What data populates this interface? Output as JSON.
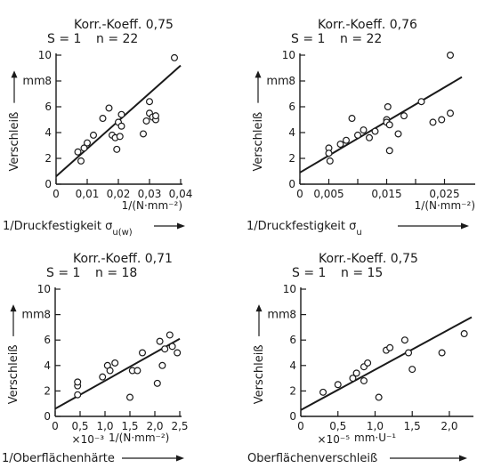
{
  "chart_data": [
    {
      "type": "scatter",
      "title": "Korr.-Koeff. 0,75",
      "subtitle_s": "S = 1",
      "subtitle_n": "n = 22",
      "ylabel": "Verschleiß",
      "yunit": "mm",
      "xunit": "1/(N·mm⁻²)",
      "xlabel": "1/Druckfestigkeit σ",
      "xlabel_sub": "u(w)",
      "xmult": "",
      "xlim": [
        0,
        0.04
      ],
      "ylim": [
        0,
        10
      ],
      "xticks": [
        0,
        0.01,
        0.02,
        0.03,
        0.04
      ],
      "xtick_labels": [
        "0",
        "0,01",
        "0,02",
        "0,03",
        "0,04"
      ],
      "yticks": [
        0,
        2,
        4,
        6,
        8,
        10
      ],
      "ytick_labels": [
        "0",
        "2",
        "4",
        "6",
        "8",
        "10"
      ],
      "grid": false,
      "points": [
        {
          "x": 0.007,
          "y": 2.5
        },
        {
          "x": 0.008,
          "y": 1.8
        },
        {
          "x": 0.009,
          "y": 2.8
        },
        {
          "x": 0.01,
          "y": 3.2
        },
        {
          "x": 0.012,
          "y": 3.8
        },
        {
          "x": 0.015,
          "y": 5.1
        },
        {
          "x": 0.017,
          "y": 5.9
        },
        {
          "x": 0.018,
          "y": 3.8
        },
        {
          "x": 0.019,
          "y": 3.6
        },
        {
          "x": 0.0195,
          "y": 2.7
        },
        {
          "x": 0.02,
          "y": 4.8
        },
        {
          "x": 0.0205,
          "y": 3.7
        },
        {
          "x": 0.021,
          "y": 5.4
        },
        {
          "x": 0.021,
          "y": 4.5
        },
        {
          "x": 0.028,
          "y": 3.9
        },
        {
          "x": 0.029,
          "y": 4.9
        },
        {
          "x": 0.03,
          "y": 6.4
        },
        {
          "x": 0.03,
          "y": 5.5
        },
        {
          "x": 0.031,
          "y": 5.2
        },
        {
          "x": 0.032,
          "y": 5.0
        },
        {
          "x": 0.032,
          "y": 5.3
        },
        {
          "x": 0.038,
          "y": 9.8
        }
      ],
      "fit_line": [
        {
          "x": 0,
          "y": 0.6
        },
        {
          "x": 0.04,
          "y": 9.2
        }
      ]
    },
    {
      "type": "scatter",
      "title": "Korr.-Koeff. 0,76",
      "subtitle_s": "S = 1",
      "subtitle_n": "n = 22",
      "ylabel": "Verschleiß",
      "yunit": "mm",
      "xunit": "1/(N·mm⁻²)",
      "xlabel": "1/Druckfestigkeit σ",
      "xlabel_sub": "u",
      "xmult": "",
      "xlim": [
        0,
        0.03
      ],
      "ylim": [
        0,
        10
      ],
      "xticks": [
        0,
        0.005,
        0.01,
        0.015,
        0.02,
        0.025
      ],
      "xtick_labels": [
        "0",
        "0,005",
        "",
        "0,015",
        "",
        "0,025"
      ],
      "yticks": [
        0,
        2,
        4,
        6,
        8,
        10
      ],
      "ytick_labels": [
        "0",
        "2",
        "4",
        "6",
        "8",
        "10"
      ],
      "grid": false,
      "points": [
        {
          "x": 0.005,
          "y": 2.8
        },
        {
          "x": 0.005,
          "y": 2.4
        },
        {
          "x": 0.0052,
          "y": 1.8
        },
        {
          "x": 0.007,
          "y": 3.1
        },
        {
          "x": 0.008,
          "y": 3.4
        },
        {
          "x": 0.009,
          "y": 5.1
        },
        {
          "x": 0.01,
          "y": 3.8
        },
        {
          "x": 0.011,
          "y": 4.2
        },
        {
          "x": 0.012,
          "y": 3.6
        },
        {
          "x": 0.013,
          "y": 4.1
        },
        {
          "x": 0.015,
          "y": 5.0
        },
        {
          "x": 0.015,
          "y": 4.8
        },
        {
          "x": 0.0152,
          "y": 6.0
        },
        {
          "x": 0.0155,
          "y": 2.6
        },
        {
          "x": 0.0155,
          "y": 4.6
        },
        {
          "x": 0.017,
          "y": 3.9
        },
        {
          "x": 0.018,
          "y": 5.3
        },
        {
          "x": 0.021,
          "y": 6.4
        },
        {
          "x": 0.023,
          "y": 4.8
        },
        {
          "x": 0.0245,
          "y": 5.0
        },
        {
          "x": 0.026,
          "y": 5.5
        },
        {
          "x": 0.026,
          "y": 10.0
        }
      ],
      "fit_line": [
        {
          "x": 0,
          "y": 0.9
        },
        {
          "x": 0.028,
          "y": 8.3
        }
      ]
    },
    {
      "type": "scatter",
      "title": "Korr.-Koeff. 0,71",
      "subtitle_s": "S = 1",
      "subtitle_n": "n = 18",
      "ylabel": "Verschleiß",
      "yunit": "mm",
      "xunit": "1/(N·mm⁻²)",
      "xlabel": "1/Oberflächenhärte",
      "xlabel_sub": "",
      "xmult": "×10⁻³",
      "xlim": [
        0,
        2.5
      ],
      "ylim": [
        0,
        10
      ],
      "xticks": [
        0,
        0.5,
        1.0,
        1.5,
        2.0,
        2.5
      ],
      "xtick_labels": [
        "0",
        "0,5",
        "1,0",
        "1,5",
        "2,0",
        "2,5"
      ],
      "yticks": [
        0,
        2,
        4,
        6,
        8,
        10
      ],
      "ytick_labels": [
        "0",
        "2",
        "4",
        "6",
        "8",
        "10"
      ],
      "grid": false,
      "points": [
        {
          "x": 0.45,
          "y": 1.7
        },
        {
          "x": 0.45,
          "y": 2.4
        },
        {
          "x": 0.45,
          "y": 2.7
        },
        {
          "x": 0.95,
          "y": 3.1
        },
        {
          "x": 1.05,
          "y": 4.0
        },
        {
          "x": 1.1,
          "y": 3.6
        },
        {
          "x": 1.2,
          "y": 4.2
        },
        {
          "x": 1.5,
          "y": 1.5
        },
        {
          "x": 1.55,
          "y": 3.6
        },
        {
          "x": 1.65,
          "y": 3.6
        },
        {
          "x": 1.75,
          "y": 5.0
        },
        {
          "x": 2.05,
          "y": 2.6
        },
        {
          "x": 2.1,
          "y": 5.9
        },
        {
          "x": 2.15,
          "y": 4.0
        },
        {
          "x": 2.2,
          "y": 5.3
        },
        {
          "x": 2.3,
          "y": 6.4
        },
        {
          "x": 2.35,
          "y": 5.5
        },
        {
          "x": 2.45,
          "y": 5.0
        }
      ],
      "fit_line": [
        {
          "x": 0,
          "y": 0.6
        },
        {
          "x": 2.5,
          "y": 6.1
        }
      ]
    },
    {
      "type": "scatter",
      "title": "Korr.-Koeff. 0,75",
      "subtitle_s": "S = 1",
      "subtitle_n": "n = 15",
      "ylabel": "Verschleiß",
      "yunit": "mm",
      "xunit": "mm·U⁻¹",
      "xlabel": "Oberflächenverschleiß",
      "xlabel_sub": "",
      "xmult": "×10⁻⁵",
      "xlim": [
        0,
        2.3
      ],
      "ylim": [
        0,
        10
      ],
      "xticks": [
        0,
        0.5,
        1.0,
        1.5,
        2.0
      ],
      "xtick_labels": [
        "0",
        "0,5",
        "1,0",
        "1,5",
        "2,0"
      ],
      "yticks": [
        0,
        2,
        4,
        6,
        8,
        10
      ],
      "ytick_labels": [
        "0",
        "2",
        "4",
        "6",
        "8",
        "10"
      ],
      "grid": false,
      "points": [
        {
          "x": 0.3,
          "y": 1.9
        },
        {
          "x": 0.5,
          "y": 2.5
        },
        {
          "x": 0.7,
          "y": 3.0
        },
        {
          "x": 0.75,
          "y": 3.4
        },
        {
          "x": 0.85,
          "y": 3.9
        },
        {
          "x": 0.9,
          "y": 4.2
        },
        {
          "x": 0.85,
          "y": 2.8
        },
        {
          "x": 1.05,
          "y": 1.5
        },
        {
          "x": 1.15,
          "y": 5.2
        },
        {
          "x": 1.2,
          "y": 5.4
        },
        {
          "x": 1.4,
          "y": 6.0
        },
        {
          "x": 1.45,
          "y": 5.0
        },
        {
          "x": 1.5,
          "y": 3.7
        },
        {
          "x": 1.9,
          "y": 5.0
        },
        {
          "x": 2.2,
          "y": 6.5
        }
      ],
      "fit_line": [
        {
          "x": 0,
          "y": 0.5
        },
        {
          "x": 2.3,
          "y": 7.8
        }
      ]
    }
  ]
}
